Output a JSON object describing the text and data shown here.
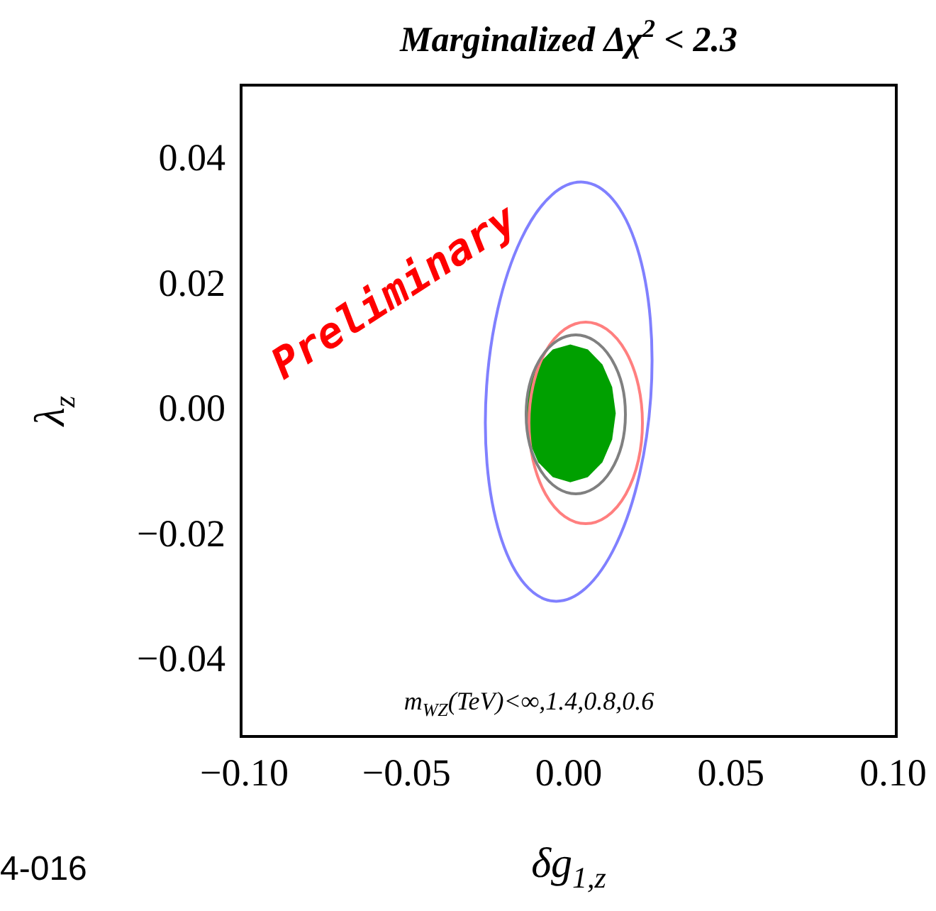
{
  "chart_data": {
    "type": "area",
    "title": "Marginalized Δχ$^{2}$ < 2.3",
    "xlabel": "δg$_{1,z}$",
    "ylabel": "λ$_{z}$",
    "xlim": [
      -0.101,
      0.101
    ],
    "ylim": [
      -0.052,
      0.052
    ],
    "xticks": [
      {
        "value": -0.1,
        "label": "−0.10"
      },
      {
        "value": -0.05,
        "label": "−0.05"
      },
      {
        "value": 0,
        "label": "0.00"
      },
      {
        "value": 0.05,
        "label": "0.05"
      },
      {
        "value": 0.1,
        "label": "0.10"
      }
    ],
    "yticks": [
      {
        "value": -0.04,
        "label": "−0.04"
      },
      {
        "value": -0.02,
        "label": "−0.02"
      },
      {
        "value": 0,
        "label": "0.00"
      },
      {
        "value": 0.02,
        "label": "0.02"
      },
      {
        "value": 0.04,
        "label": "0.04"
      }
    ],
    "series": [
      {
        "color": "#00a000",
        "x": [
          0.0145,
          0.0134,
          0.0104,
          0.0059,
          0.0005,
          -0.0049,
          -0.0094,
          -0.0124,
          -0.0135,
          -0.0124,
          -0.0094,
          -0.0049,
          0.0005,
          0.0059,
          0.0104,
          0.0134,
          0.0145
        ],
        "values": [
          -0.0004,
          0.0038,
          0.0074,
          0.0098,
          0.0106,
          0.0098,
          0.0074,
          0.0038,
          -0.0004,
          -0.0046,
          -0.0082,
          -0.0106,
          -0.0114,
          -0.0106,
          -0.0082,
          -0.0046,
          -0.0004
        ]
      }
    ],
    "annotations": [
      "Preliminary",
      "m$_{WZ}$(TeV)<∞,1.4,0.8,0.6",
      "4-016"
    ],
    "grid": false,
    "legend": false,
    "marker": "none"
  }
}
